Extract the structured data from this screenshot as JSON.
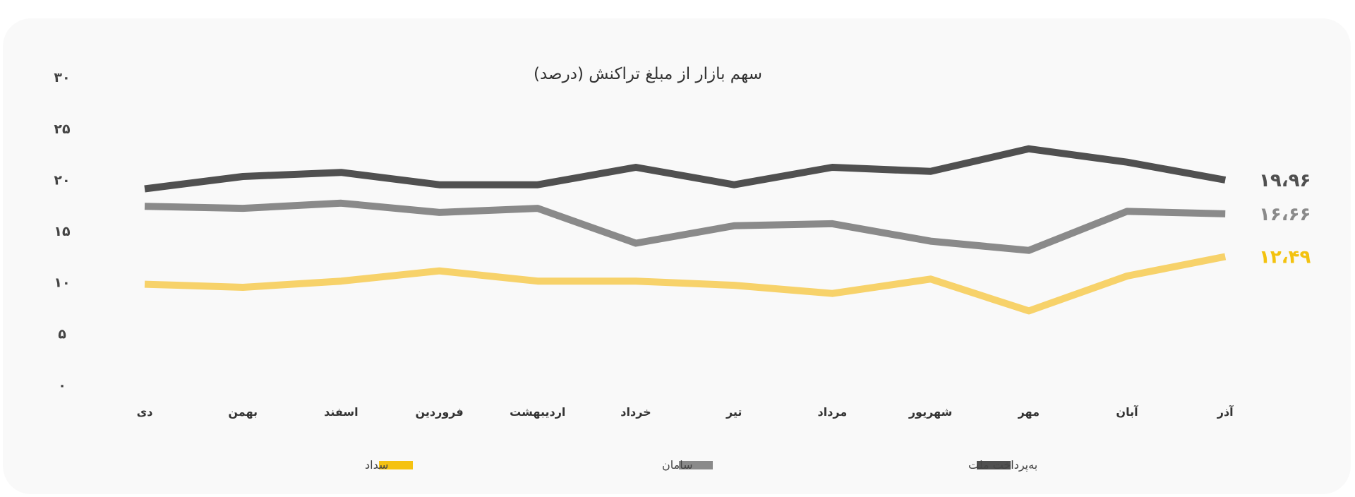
{
  "chart_data": {
    "type": "line",
    "title": "سهم بازار از مبلغ تراکنش (درصد)",
    "categories": [
      "دی",
      "بهمن",
      "اسفند",
      "فروردین",
      "اردیبهشت",
      "خرداد",
      "تیر",
      "مرداد",
      "شهریور",
      "مهر",
      "آبان",
      "آذر"
    ],
    "y_ticks": [
      "۰",
      "۵",
      "۱۰",
      "۱۵",
      "۲۰",
      "۲۵",
      "۳۰"
    ],
    "ylim": [
      0,
      30
    ],
    "grid": false,
    "legend_position": "bottom",
    "series": [
      {
        "name": "به‌پرداخت ملت",
        "color": "#505050",
        "values": [
          19.1,
          20.3,
          20.7,
          19.5,
          19.5,
          21.2,
          19.5,
          21.2,
          20.8,
          23.0,
          21.7,
          19.96
        ],
        "end_label": "۱۹،۹۶"
      },
      {
        "name": "سامان",
        "color": "#8a8a8a",
        "values": [
          17.4,
          17.2,
          17.7,
          16.8,
          17.2,
          13.8,
          15.5,
          15.7,
          14.0,
          13.1,
          16.9,
          16.66
        ],
        "end_label": "۱۶،۶۶"
      },
      {
        "name": "سداد",
        "color": "#f7d26a",
        "values": [
          9.8,
          9.5,
          10.1,
          11.1,
          10.1,
          10.1,
          9.7,
          8.9,
          10.3,
          7.2,
          10.6,
          12.49
        ],
        "end_label": "۱۲،۴۹",
        "label_color": "#f3c20f"
      }
    ],
    "legend": [
      {
        "label": "به‌پرداخت ملت",
        "color": "#505050"
      },
      {
        "label": "سامان",
        "color": "#8a8a8a"
      },
      {
        "label": "سداد",
        "color": "#f5c211"
      }
    ]
  }
}
